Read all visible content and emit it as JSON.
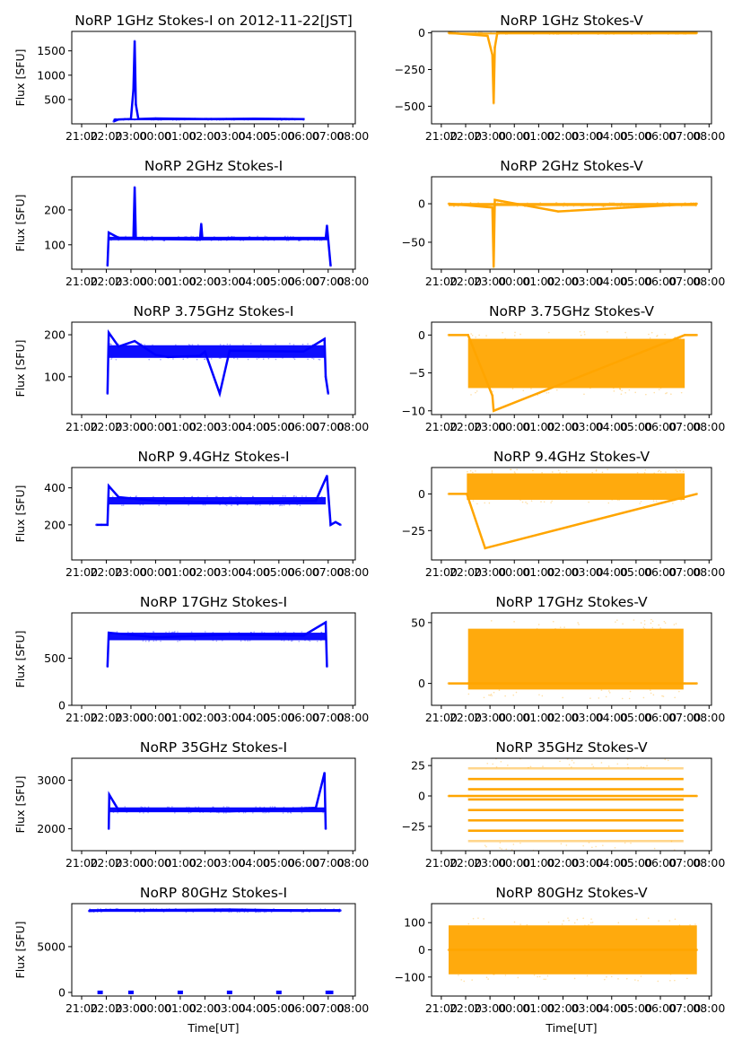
{
  "figure": {
    "xlabel": "Time[UT]",
    "colors": {
      "stokes_i": "#0000ff",
      "stokes_v": "#ffa500",
      "axes": "#000000"
    }
  },
  "chart_data": [
    {
      "type": "scatter",
      "title": "NoRP 1GHz Stokes-I on 2012-11-22[JST]",
      "ylabel": "Flux [SFU]",
      "xlabel": "",
      "ylim": [
        0,
        1900
      ],
      "yticks": [
        500,
        1000,
        1500
      ],
      "xticks": [
        "21:00",
        "22:00",
        "23:00",
        "00:00",
        "01:00",
        "02:00",
        "03:00",
        "04:00",
        "05:00",
        "06:00",
        "07:00",
        "08:00"
      ],
      "color": "#0000ff",
      "series": {
        "x_hours": [
          22.3,
          22.5,
          23.0,
          23.1,
          23.15,
          23.2,
          23.3,
          24.0,
          26.0,
          28.0,
          30.0,
          30.0
        ],
        "y": [
          50,
          90,
          100,
          700,
          1700,
          400,
          100,
          110,
          100,
          105,
          95,
          90
        ]
      },
      "band": [
        22.3,
        30.0,
        80,
        110
      ]
    },
    {
      "type": "scatter",
      "title": "NoRP 1GHz Stokes-V",
      "ylabel": "",
      "xlabel": "",
      "ylim": [
        -620,
        10
      ],
      "yticks": [
        0,
        -250,
        -500
      ],
      "xticks": [
        "21:00",
        "22:00",
        "23:00",
        "00:00",
        "01:00",
        "02:00",
        "03:00",
        "04:00",
        "05:00",
        "06:00",
        "07:00",
        "08:00"
      ],
      "color": "#ffa500",
      "series": {
        "x_hours": [
          21.3,
          22.9,
          23.1,
          23.15,
          23.2,
          23.3,
          31.5
        ],
        "y": [
          0,
          -20,
          -150,
          -480,
          -100,
          0,
          0
        ]
      },
      "band": [
        21.3,
        31.5,
        -8,
        2
      ]
    },
    {
      "type": "scatter",
      "title": "NoRP 2GHz Stokes-I",
      "ylabel": "Flux [SFU]",
      "xlabel": "",
      "ylim": [
        30,
        295
      ],
      "yticks": [
        100,
        200
      ],
      "xticks": [
        "21:00",
        "22:00",
        "23:00",
        "00:00",
        "01:00",
        "02:00",
        "03:00",
        "04:00",
        "05:00",
        "06:00",
        "07:00",
        "08:00"
      ],
      "color": "#0000ff",
      "series": {
        "x_hours": [
          22.05,
          22.1,
          22.5,
          23.1,
          23.15,
          23.2,
          24.0,
          25.8,
          25.85,
          25.9,
          30.9,
          30.95,
          31.1
        ],
        "y": [
          40,
          135,
          120,
          120,
          265,
          118,
          117,
          115,
          160,
          116,
          117,
          155,
          40
        ]
      },
      "band": [
        22.1,
        31.0,
        113,
        123
      ]
    },
    {
      "type": "scatter",
      "title": "NoRP 2GHz Stokes-V",
      "ylabel": "",
      "xlabel": "",
      "ylim": [
        -85,
        35
      ],
      "yticks": [
        0,
        -50
      ],
      "xticks": [
        "21:00",
        "22:00",
        "23:00",
        "00:00",
        "01:00",
        "02:00",
        "03:00",
        "04:00",
        "05:00",
        "06:00",
        "07:00",
        "08:00"
      ],
      "color": "#ffa500",
      "series": {
        "x_hours": [
          21.3,
          23.1,
          23.15,
          23.2,
          25.8,
          31.5
        ],
        "y": [
          0,
          -5,
          -82,
          5,
          -10,
          0
        ]
      },
      "band": [
        21.3,
        31.5,
        -3,
        1
      ]
    },
    {
      "type": "scatter",
      "title": "NoRP 3.75GHz Stokes-I",
      "ylabel": "Flux [SFU]",
      "xlabel": "",
      "ylim": [
        10,
        230
      ],
      "yticks": [
        100,
        200
      ],
      "xticks": [
        "21:00",
        "22:00",
        "23:00",
        "00:00",
        "01:00",
        "02:00",
        "03:00",
        "04:00",
        "05:00",
        "06:00",
        "07:00",
        "08:00"
      ],
      "color": "#0000ff",
      "series": {
        "x_hours": [
          22.05,
          22.1,
          22.5,
          23.15,
          24.0,
          24.5,
          25.8,
          26.0,
          26.6,
          27.0,
          30.0,
          30.85,
          30.9,
          31.0
        ],
        "y": [
          60,
          205,
          172,
          185,
          152,
          147,
          150,
          160,
          60,
          162,
          160,
          190,
          100,
          60
        ]
      },
      "band": [
        22.1,
        30.9,
        145,
        175
      ]
    },
    {
      "type": "scatter",
      "title": "NoRP 3.75GHz Stokes-V",
      "ylabel": "",
      "xlabel": "",
      "ylim": [
        -10.5,
        1.7
      ],
      "yticks": [
        0,
        -5,
        -10
      ],
      "xticks": [
        "21:00",
        "22:00",
        "23:00",
        "00:00",
        "01:00",
        "02:00",
        "03:00",
        "04:00",
        "05:00",
        "06:00",
        "07:00",
        "08:00"
      ],
      "color": "#ffa500",
      "series": {
        "x_hours": [
          21.3,
          22.1,
          23.1,
          23.15,
          31.0,
          31.5
        ],
        "y": [
          0,
          0,
          -8,
          -10,
          0,
          0
        ]
      },
      "band": [
        22.1,
        31.0,
        -7,
        -0.5
      ]
    },
    {
      "type": "scatter",
      "title": "NoRP 9.4GHz Stokes-I",
      "ylabel": "Flux [SFU]",
      "xlabel": "",
      "ylim": [
        10,
        510
      ],
      "yticks": [
        200,
        400
      ],
      "xticks": [
        "21:00",
        "22:00",
        "23:00",
        "00:00",
        "01:00",
        "02:00",
        "03:00",
        "04:00",
        "05:00",
        "06:00",
        "07:00",
        "08:00"
      ],
      "color": "#0000ff",
      "series": {
        "x_hours": [
          21.6,
          21.8,
          22.05,
          22.1,
          22.5,
          24.0,
          27.0,
          30.5,
          30.95,
          31.1,
          31.3,
          31.5
        ],
        "y": [
          200,
          200,
          200,
          410,
          350,
          330,
          320,
          330,
          465,
          200,
          215,
          200
        ]
      },
      "band": [
        22.1,
        30.9,
        310,
        350
      ]
    },
    {
      "type": "scatter",
      "title": "NoRP 9.4GHz Stokes-V",
      "ylabel": "",
      "xlabel": "",
      "ylim": [
        -45,
        18
      ],
      "yticks": [
        0,
        -25
      ],
      "xticks": [
        "21:00",
        "22:00",
        "23:00",
        "00:00",
        "01:00",
        "02:00",
        "03:00",
        "04:00",
        "05:00",
        "06:00",
        "07:00",
        "08:00"
      ],
      "color": "#ffa500",
      "series": {
        "x_hours": [
          21.3,
          22.05,
          22.8,
          31.5
        ],
        "y": [
          0,
          0,
          -37,
          0
        ]
      },
      "band": [
        22.05,
        31.0,
        -4,
        14
      ]
    },
    {
      "type": "scatter",
      "title": "NoRP 17GHz Stokes-I",
      "ylabel": "Flux [SFU]",
      "xlabel": "",
      "ylim": [
        0,
        980
      ],
      "yticks": [
        0,
        500
      ],
      "xticks": [
        "21:00",
        "22:00",
        "23:00",
        "00:00",
        "01:00",
        "02:00",
        "03:00",
        "04:00",
        "05:00",
        "06:00",
        "07:00",
        "08:00"
      ],
      "color": "#0000ff",
      "series": {
        "x_hours": [
          22.05,
          22.1,
          24.0,
          27.0,
          30.0,
          30.9,
          30.95
        ],
        "y": [
          410,
          770,
          720,
          750,
          740,
          880,
          410
        ]
      },
      "band": [
        22.1,
        30.9,
        690,
        770
      ]
    },
    {
      "type": "scatter",
      "title": "NoRP 17GHz Stokes-V",
      "ylabel": "",
      "xlabel": "",
      "ylim": [
        -18,
        58
      ],
      "yticks": [
        0,
        50
      ],
      "xticks": [
        "21:00",
        "22:00",
        "23:00",
        "00:00",
        "01:00",
        "02:00",
        "03:00",
        "04:00",
        "05:00",
        "06:00",
        "07:00",
        "08:00"
      ],
      "color": "#ffa500",
      "series": {
        "x_hours": [
          21.3,
          22.1,
          31.0,
          31.5
        ],
        "y": [
          0,
          0,
          0,
          0
        ]
      },
      "band": [
        22.1,
        30.95,
        -5,
        45
      ]
    },
    {
      "type": "scatter",
      "title": "NoRP 35GHz Stokes-I",
      "ylabel": "Flux [SFU]",
      "xlabel": "",
      "ylim": [
        1550,
        3450
      ],
      "yticks": [
        2000,
        3000
      ],
      "xticks": [
        "21:00",
        "22:00",
        "23:00",
        "00:00",
        "01:00",
        "02:00",
        "03:00",
        "04:00",
        "05:00",
        "06:00",
        "07:00",
        "08:00"
      ],
      "color": "#0000ff",
      "series": {
        "x_hours": [
          22.1,
          22.12,
          22.5,
          25.0,
          27.0,
          30.5,
          30.85,
          30.9
        ],
        "y": [
          2000,
          2700,
          2380,
          2370,
          2360,
          2430,
          3150,
          2000
        ]
      },
      "band": [
        22.1,
        30.9,
        2340,
        2440
      ]
    },
    {
      "type": "scatter",
      "title": "NoRP 35GHz Stokes-V",
      "ylabel": "",
      "xlabel": "",
      "ylim": [
        -45,
        31
      ],
      "yticks": [
        25,
        0,
        -25
      ],
      "xticks": [
        "21:00",
        "22:00",
        "23:00",
        "00:00",
        "01:00",
        "02:00",
        "03:00",
        "04:00",
        "05:00",
        "06:00",
        "07:00",
        "08:00"
      ],
      "color": "#ffa500",
      "levels": [
        22.8,
        14,
        5.6,
        -2.8,
        -11.5,
        -20,
        -28.5,
        -37
      ],
      "series": {
        "x_hours": [
          21.3,
          22.1,
          30.95,
          31.5
        ],
        "y": [
          0,
          0,
          0,
          0
        ]
      },
      "band": [
        22.1,
        30.95,
        -37,
        23
      ]
    },
    {
      "type": "scatter",
      "title": "NoRP 80GHz Stokes-I",
      "ylabel": "Flux [SFU]",
      "xlabel": "Time[UT]",
      "ylim": [
        -400,
        9700
      ],
      "yticks": [
        0,
        5000
      ],
      "xticks": [
        "21:00",
        "22:00",
        "23:00",
        "00:00",
        "01:00",
        "02:00",
        "03:00",
        "04:00",
        "05:00",
        "06:00",
        "07:00",
        "08:00"
      ],
      "color": "#0000ff",
      "series": {
        "x_hours": [
          21.3,
          22.0,
          24.0,
          27.0,
          30.0,
          31.5
        ],
        "y": [
          8900,
          9000,
          9000,
          9050,
          8950,
          8950
        ]
      },
      "calibration_points": {
        "x_hours": [
          21.75,
          23.0,
          25.0,
          27.0,
          29.0,
          31.0,
          31.1
        ],
        "y": [
          0,
          0,
          0,
          0,
          0,
          0,
          0
        ]
      },
      "band": [
        21.3,
        31.5,
        8800,
        9100
      ]
    },
    {
      "type": "scatter",
      "title": "NoRP 80GHz Stokes-V",
      "ylabel": "",
      "xlabel": "Time[UT]",
      "ylim": [
        -170,
        170
      ],
      "yticks": [
        100,
        0,
        -100
      ],
      "xticks": [
        "21:00",
        "22:00",
        "23:00",
        "00:00",
        "01:00",
        "02:00",
        "03:00",
        "04:00",
        "05:00",
        "06:00",
        "07:00",
        "08:00"
      ],
      "color": "#ffa500",
      "series": {
        "x_hours": [
          21.3,
          27.0,
          31.5
        ],
        "y": [
          0,
          0,
          0
        ]
      },
      "band": [
        21.3,
        31.5,
        -90,
        90
      ]
    }
  ]
}
